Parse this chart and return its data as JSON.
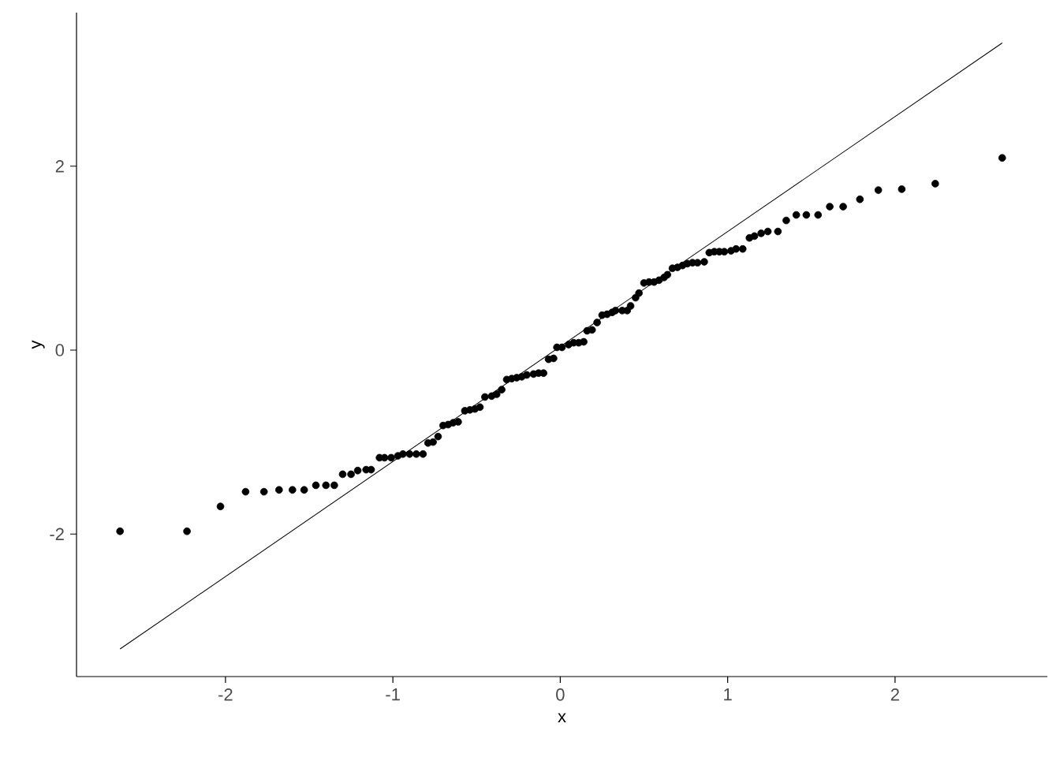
{
  "chart_data": {
    "type": "scatter",
    "xlabel": "x",
    "ylabel": "y",
    "xlim": [
      -2.89,
      2.91
    ],
    "ylim": [
      -3.55,
      3.67
    ],
    "xticks": [
      -2,
      -1,
      0,
      1,
      2
    ],
    "yticks": [
      -2,
      0,
      2
    ],
    "marker": "circle",
    "series": [
      {
        "type": "scatter",
        "color": "#000000",
        "x": [
          -2.63,
          -2.23,
          -2.03,
          -1.88,
          -1.77,
          -1.68,
          -1.6,
          -1.53,
          -1.46,
          -1.4,
          -1.35,
          -1.3,
          -1.25,
          -1.21,
          -1.16,
          -1.13,
          -1.08,
          -1.05,
          -1.01,
          -0.97,
          -0.94,
          -0.9,
          -0.86,
          -0.82,
          -0.79,
          -0.76,
          -0.73,
          -0.7,
          -0.67,
          -0.64,
          -0.61,
          -0.57,
          -0.54,
          -0.51,
          -0.48,
          -0.45,
          -0.41,
          -0.38,
          -0.35,
          -0.32,
          -0.29,
          -0.26,
          -0.23,
          -0.2,
          -0.16,
          -0.13,
          -0.1,
          -0.07,
          -0.04,
          -0.02,
          0.01,
          0.05,
          0.08,
          0.11,
          0.14,
          0.16,
          0.19,
          0.22,
          0.25,
          0.28,
          0.31,
          0.33,
          0.37,
          0.4,
          0.42,
          0.45,
          0.47,
          0.5,
          0.53,
          0.56,
          0.59,
          0.62,
          0.64,
          0.67,
          0.7,
          0.73,
          0.76,
          0.79,
          0.82,
          0.86,
          0.89,
          0.92,
          0.95,
          0.98,
          1.02,
          1.05,
          1.09,
          1.13,
          1.16,
          1.2,
          1.24,
          1.3,
          1.35,
          1.41,
          1.47,
          1.54,
          1.61,
          1.69,
          1.79,
          1.9,
          2.04,
          2.24,
          2.64
        ],
        "values": [
          -1.97,
          -1.97,
          -1.7,
          -1.54,
          -1.54,
          -1.52,
          -1.52,
          -1.52,
          -1.47,
          -1.47,
          -1.47,
          -1.35,
          -1.35,
          -1.31,
          -1.3,
          -1.3,
          -1.17,
          -1.17,
          -1.17,
          -1.15,
          -1.13,
          -1.13,
          -1.13,
          -1.13,
          -1.01,
          -1.0,
          -0.94,
          -0.82,
          -0.81,
          -0.79,
          -0.78,
          -0.66,
          -0.65,
          -0.64,
          -0.62,
          -0.51,
          -0.5,
          -0.48,
          -0.43,
          -0.32,
          -0.31,
          -0.3,
          -0.29,
          -0.27,
          -0.26,
          -0.25,
          -0.25,
          -0.1,
          -0.09,
          0.03,
          0.03,
          0.06,
          0.08,
          0.08,
          0.09,
          0.21,
          0.22,
          0.3,
          0.38,
          0.39,
          0.41,
          0.43,
          0.43,
          0.43,
          0.48,
          0.57,
          0.62,
          0.73,
          0.74,
          0.74,
          0.76,
          0.79,
          0.82,
          0.89,
          0.9,
          0.92,
          0.94,
          0.95,
          0.95,
          0.96,
          1.06,
          1.07,
          1.07,
          1.07,
          1.08,
          1.1,
          1.1,
          1.22,
          1.24,
          1.27,
          1.29,
          1.29,
          1.41,
          1.47,
          1.47,
          1.47,
          1.56,
          1.56,
          1.64,
          1.74,
          1.75,
          1.81,
          2.09
        ]
      },
      {
        "type": "line",
        "color": "#000000",
        "marker": "none",
        "line_style": "solid",
        "x": [
          -2.63,
          2.64
        ],
        "values": [
          -3.25,
          3.34
        ]
      }
    ]
  }
}
